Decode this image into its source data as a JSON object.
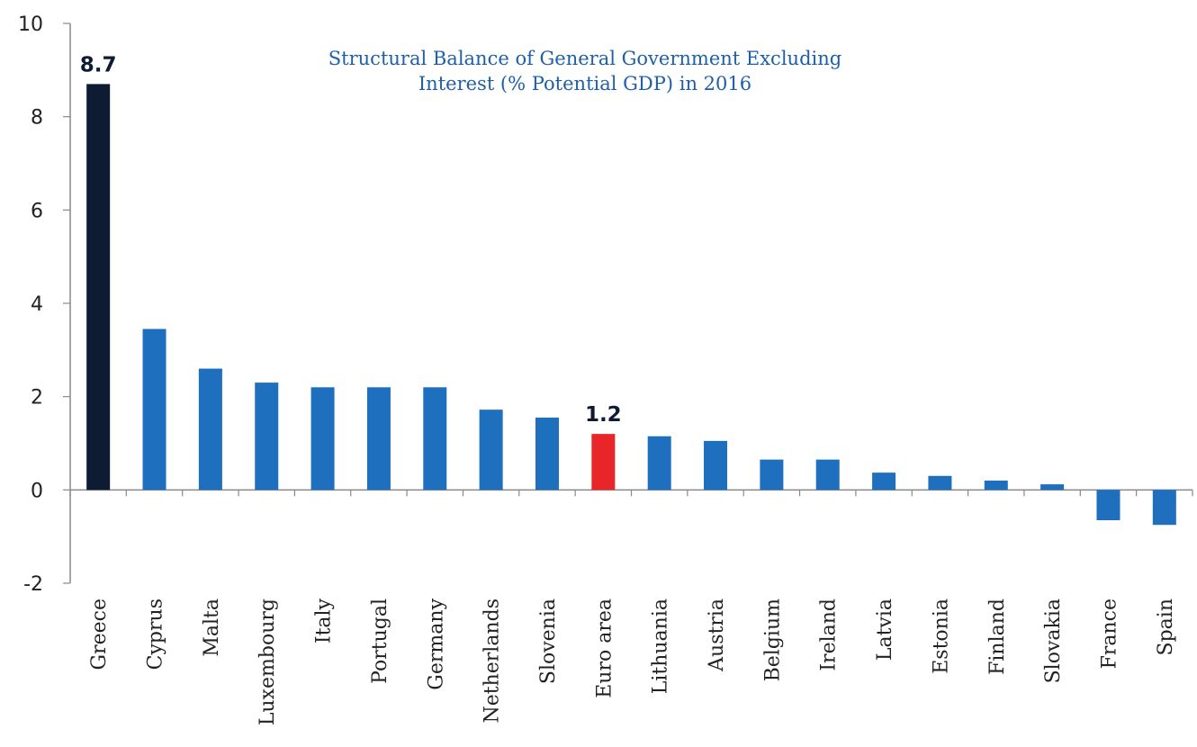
{
  "chart_data": {
    "type": "bar",
    "title_lines": [
      "Structural Balance of General Government Excluding",
      "Interest (% Potential GDP) in 2016"
    ],
    "categories": [
      "Greece",
      "Cyprus",
      "Malta",
      "Luxembourg",
      "Italy",
      "Portugal",
      "Germany",
      "Netherlands",
      "Slovenia",
      "Euro area",
      "Lithuania",
      "Austria",
      "Belgium",
      "Ireland",
      "Latvia",
      "Estonia",
      "Finland",
      "Slovakia",
      "France",
      "Spain"
    ],
    "values": [
      8.7,
      3.45,
      2.6,
      2.3,
      2.2,
      2.2,
      2.2,
      1.72,
      1.55,
      1.2,
      1.15,
      1.05,
      0.65,
      0.65,
      0.37,
      0.3,
      0.2,
      0.12,
      -0.65,
      -0.75
    ],
    "bar_colors": [
      "#0d1b33",
      "#1f6fbf",
      "#1f6fbf",
      "#1f6fbf",
      "#1f6fbf",
      "#1f6fbf",
      "#1f6fbf",
      "#1f6fbf",
      "#1f6fbf",
      "#e8262a",
      "#1f6fbf",
      "#1f6fbf",
      "#1f6fbf",
      "#1f6fbf",
      "#1f6fbf",
      "#1f6fbf",
      "#1f6fbf",
      "#1f6fbf",
      "#1f6fbf",
      "#1f6fbf"
    ],
    "annotations": [
      {
        "category": "Greece",
        "text": "8.7"
      },
      {
        "category": "Euro area",
        "text": "1.2"
      }
    ],
    "yticks": [
      -2,
      0,
      2,
      4,
      6,
      8,
      10
    ],
    "ylim": [
      -2,
      10
    ],
    "xlabel": "",
    "ylabel": "",
    "grid": false,
    "legend": "none"
  }
}
